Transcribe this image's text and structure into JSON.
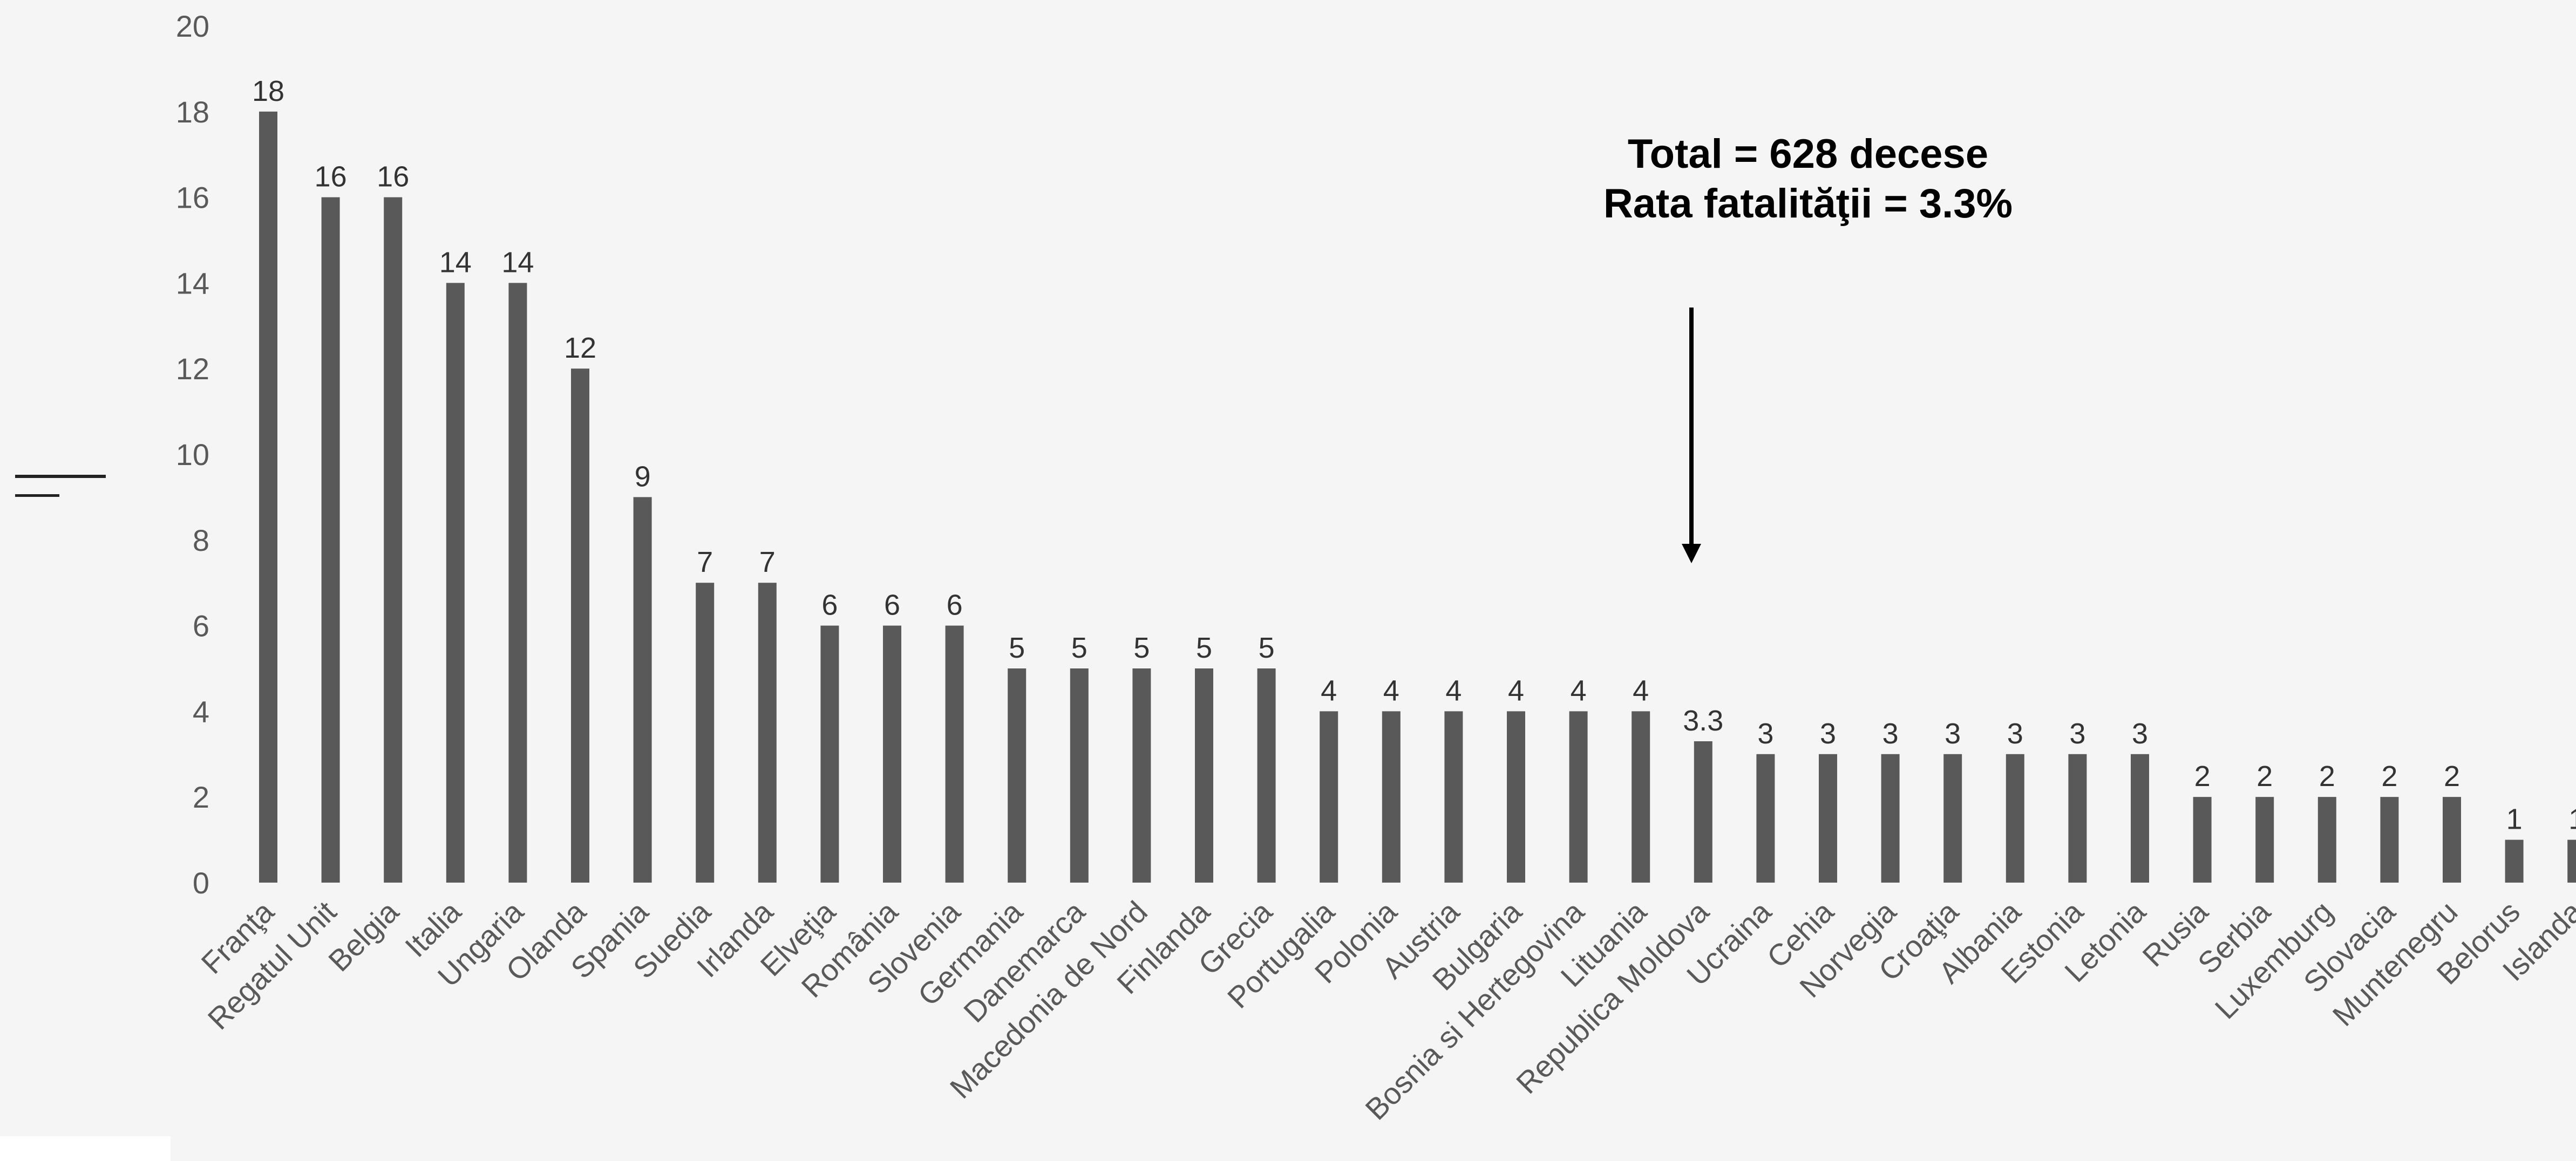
{
  "chart_data": {
    "type": "bar",
    "title": "",
    "xlabel": "",
    "ylabel": "",
    "ylim": [
      0,
      20
    ],
    "yticks": [
      0,
      2,
      4,
      6,
      8,
      10,
      12,
      14,
      16,
      18,
      20
    ],
    "grid": false,
    "bar_color": "#595959",
    "categories": [
      "Franţa",
      "Regatul Unit",
      "Belgia",
      "Italia",
      "Ungaria",
      "Olanda",
      "Spania",
      "Suedia",
      "Irlanda",
      "Elveţia",
      "România",
      "Slovenia",
      "Germania",
      "Danemarca",
      "Macedonia de Nord",
      "Finlanda",
      "Grecia",
      "Portugalia",
      "Polonia",
      "Austria",
      "Bulgaria",
      "Bosnia si Hertegovina",
      "Lituania",
      "Republica Moldova",
      "Ucraina",
      "Cehia",
      "Norvegia",
      "Croaţia",
      "Albania",
      "Estonia",
      "Letonia",
      "Rusia",
      "Serbia",
      "Luxemburg",
      "Slovacia",
      "Muntenegru",
      "Belorus",
      "Islanda"
    ],
    "values": [
      18,
      16,
      16,
      14,
      14,
      12,
      9,
      7,
      7,
      6,
      6,
      6,
      5,
      5,
      5,
      5,
      5,
      4,
      4,
      4,
      4,
      4,
      4,
      3.3,
      3,
      3,
      3,
      3,
      3,
      3,
      3,
      2,
      2,
      2,
      2,
      2,
      1,
      1
    ],
    "annotations": [
      "Total =  628 decese",
      "Rata fatalităţii = 3.3%"
    ],
    "arrow_target_category": "Republica Moldova"
  }
}
